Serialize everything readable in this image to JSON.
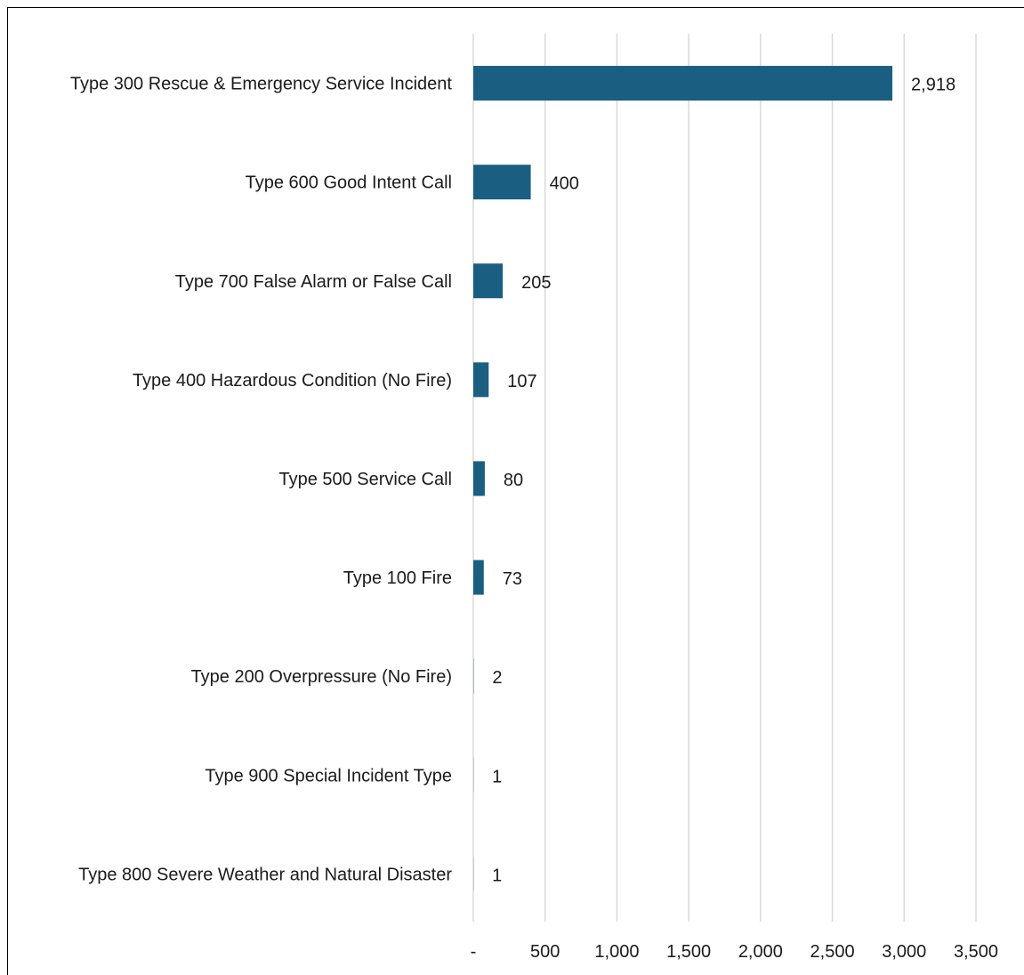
{
  "chart_data": {
    "type": "bar",
    "orientation": "horizontal",
    "categories": [
      "Type 300 Rescue & Emergency Service Incident",
      "Type 600 Good Intent Call",
      "Type 700 False Alarm or False Call",
      "Type 400 Hazardous Condition (No Fire)",
      "Type 500 Service Call",
      "Type 100 Fire",
      "Type 200 Overpressure (No Fire)",
      "Type 900 Special Incident Type",
      "Type 800 Severe Weather and Natural Disaster"
    ],
    "values": [
      2918,
      400,
      205,
      107,
      80,
      73,
      2,
      1,
      1
    ],
    "value_labels": [
      "2,918",
      "400",
      "205",
      "107",
      "80",
      "73",
      "2",
      "1",
      "1"
    ],
    "xlim": [
      0,
      3500
    ],
    "xticks": [
      0,
      500,
      1000,
      1500,
      2000,
      2500,
      3000,
      3500
    ],
    "xtick_labels": [
      "-",
      "500",
      "1,000",
      "1,500",
      "2,000",
      "2,500",
      "3,000",
      "3,500"
    ],
    "grid": "vertical",
    "legend": "none",
    "bar_color": "#1a5f82",
    "grid_color": "#d9d9d9"
  }
}
